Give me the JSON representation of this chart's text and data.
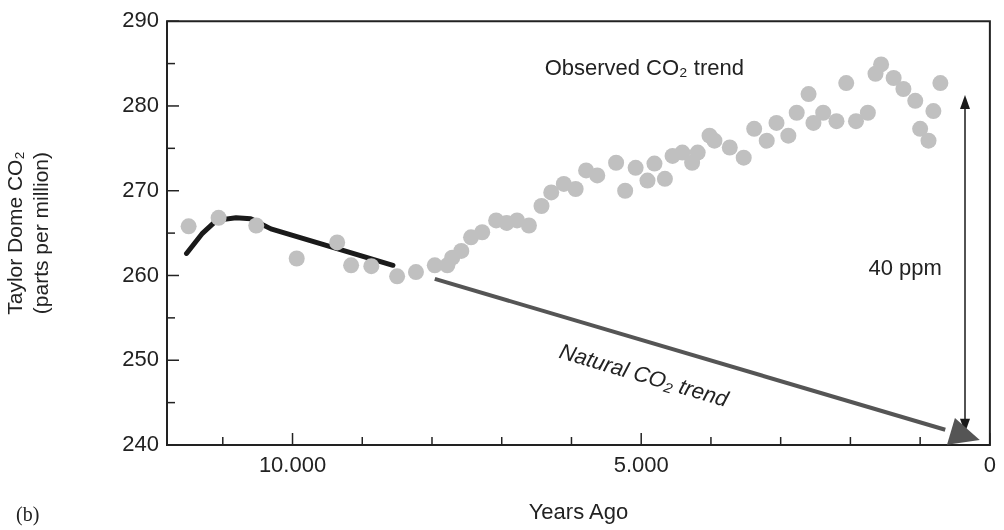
{
  "chart_data": {
    "type": "scatter",
    "xlabel": "Years Ago",
    "ylabel": "Taylor Dome CO₂\n(parts per million)",
    "xlim": [
      11800,
      0
    ],
    "ylim": [
      240,
      290
    ],
    "xticks": [
      {
        "value": 11000,
        "label": null
      },
      {
        "value": 10000,
        "label": "10.000"
      },
      {
        "value": 9000,
        "label": null
      },
      {
        "value": 8000,
        "label": null
      },
      {
        "value": 7000,
        "label": null
      },
      {
        "value": 6000,
        "label": null
      },
      {
        "value": 5000,
        "label": "5.000"
      },
      {
        "value": 4000,
        "label": null
      },
      {
        "value": 3000,
        "label": null
      },
      {
        "value": 2000,
        "label": null
      },
      {
        "value": 1000,
        "label": null
      },
      0
    ],
    "yticks": [
      240,
      {
        "value": 245,
        "label": null
      },
      250,
      {
        "value": 255,
        "label": null
      },
      260,
      {
        "value": 265,
        "label": null
      },
      270,
      {
        "value": 275,
        "label": null
      },
      280,
      {
        "value": 285,
        "label": null
      },
      290
    ],
    "grid": false,
    "legend": false,
    "series": [
      {
        "name": "Observed CO₂ trend",
        "marker": "circle",
        "color": "#c0c0c0",
        "x": [
          11490,
          11060,
          10520,
          9940,
          9360,
          9160,
          8870,
          8500,
          8230,
          7960,
          7780,
          7710,
          7580,
          7440,
          7280,
          7080,
          6930,
          6780,
          6610,
          6430,
          6290,
          6110,
          5940,
          5790,
          5630,
          5360,
          5230,
          5080,
          4910,
          4810,
          4660,
          4550,
          4410,
          4270,
          4190,
          4020,
          3950,
          3730,
          3530,
          3380,
          3200,
          3060,
          2890,
          2770,
          2600,
          2530,
          2390,
          2200,
          2060,
          1920,
          1750,
          1640,
          1560,
          1380,
          1240,
          1070,
          1000,
          880,
          810,
          710
        ],
        "values": [
          265.8,
          266.8,
          265.9,
          262.0,
          263.9,
          261.2,
          261.1,
          259.9,
          260.4,
          261.2,
          261.2,
          262.1,
          262.9,
          264.5,
          265.1,
          266.5,
          266.2,
          266.5,
          265.9,
          268.2,
          269.8,
          270.8,
          270.2,
          272.4,
          271.8,
          273.3,
          270.0,
          272.7,
          271.2,
          273.2,
          271.4,
          274.1,
          274.5,
          273.3,
          274.5,
          276.5,
          275.9,
          275.1,
          273.9,
          277.3,
          275.9,
          278.0,
          276.5,
          279.2,
          281.4,
          278.0,
          279.2,
          278.2,
          282.7,
          278.2,
          279.2,
          283.8,
          284.9,
          283.3,
          282.0,
          280.6,
          277.3,
          275.9,
          279.4,
          282.7
        ]
      },
      {
        "type": "line",
        "color": "#1a1a1a",
        "marker": "none",
        "x": [
          11520,
          11300,
          11090,
          10810,
          10600,
          10310,
          8560
        ],
        "values": [
          262.6,
          264.9,
          266.5,
          266.8,
          266.7,
          265.5,
          261.2
        ]
      },
      {
        "name": "Natural CO₂ trend",
        "type": "line",
        "color": "#555555",
        "marker": "none",
        "x": [
          7960,
          640
        ],
        "values": [
          259.6,
          241.8
        ]
      }
    ],
    "annotations": [
      "40 ppm",
      "(b)"
    ]
  }
}
